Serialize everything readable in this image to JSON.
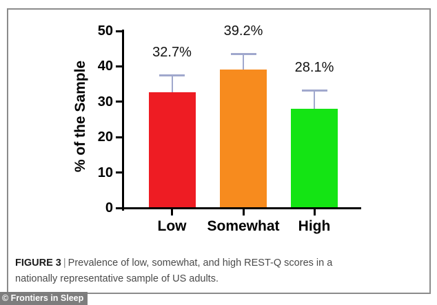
{
  "figure": {
    "caption": {
      "label": "FIGURE 3",
      "separator": "|",
      "line1": "Prevalence of low, somewhat, and high REST-Q scores in a",
      "line2": "nationally representative sample of US adults."
    },
    "watermark": "© Frontiers in Sleep"
  },
  "chart_data": {
    "type": "bar",
    "title": "",
    "categories": [
      "Low",
      "Somewhat",
      "High"
    ],
    "values": [
      32.7,
      39.2,
      28.1
    ],
    "data_labels": [
      "32.7%",
      "39.2%",
      "28.1%"
    ],
    "errors_upper": [
      4.7,
      4.2,
      5.0
    ],
    "bar_colors": [
      "#ee1c23",
      "#f78b1e",
      "#14e414"
    ],
    "error_bar_color": "#a0a8cd",
    "axis_color": "#000000",
    "ylabel": "% of the Sample",
    "xlabel": "",
    "yticks": [
      0,
      10,
      20,
      30,
      40,
      50
    ],
    "ylim": [
      0,
      50
    ],
    "grid": false,
    "legend_position": "none"
  }
}
